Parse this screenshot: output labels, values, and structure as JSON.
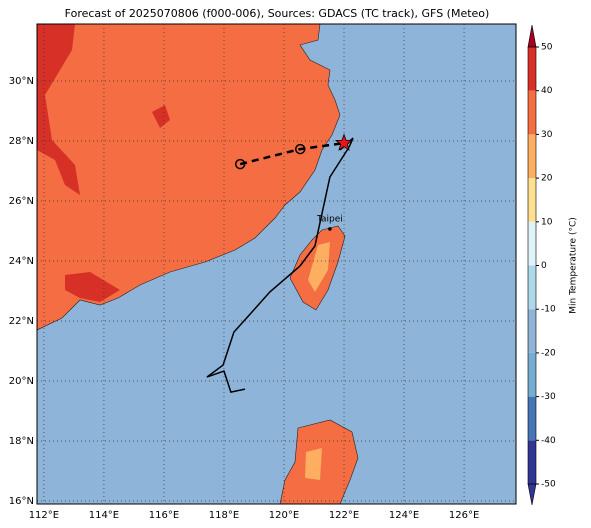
{
  "title": "Forecast of 2025070806 (f000-006), Sources: GDACS (TC track), GFS (Meteo)",
  "map": {
    "xlim": [
      111.77,
      127.73
    ],
    "ylim": [
      15.9,
      31.9
    ],
    "xticks": [
      {
        "value": 112,
        "label": "112°E"
      },
      {
        "value": 114,
        "label": "114°E"
      },
      {
        "value": 116,
        "label": "116°E"
      },
      {
        "value": 118,
        "label": "118°E"
      },
      {
        "value": 120,
        "label": "120°E"
      },
      {
        "value": 122,
        "label": "122°E"
      },
      {
        "value": 124,
        "label": "124°E"
      },
      {
        "value": 126,
        "label": "126°E"
      }
    ],
    "yticks": [
      {
        "value": 16,
        "label": "16°N"
      },
      {
        "value": 18,
        "label": "18°N"
      },
      {
        "value": 20,
        "label": "20°N"
      },
      {
        "value": 22,
        "label": "22°N"
      },
      {
        "value": 24,
        "label": "24°N"
      },
      {
        "value": 26,
        "label": "26°N"
      },
      {
        "value": 28,
        "label": "28°N"
      },
      {
        "value": 30,
        "label": "30°N"
      }
    ],
    "grid": true,
    "city": {
      "name": "Taipei",
      "lon": 121.53,
      "lat": 25.07
    },
    "gfs_track": {
      "color": "#000000",
      "lon": [
        118.7,
        118.23,
        118.0,
        117.43,
        117.97,
        118.33,
        118.87,
        119.53,
        120.53,
        121.03,
        121.53,
        122.17,
        122.3,
        121.87
      ],
      "lat": [
        19.73,
        19.63,
        20.33,
        20.13,
        20.53,
        21.63,
        22.23,
        22.97,
        23.83,
        24.5,
        26.8,
        27.8,
        28.1,
        27.7
      ]
    },
    "gdacs_track": {
      "color": "#000000",
      "lon": [
        118.54,
        120.54,
        122.0
      ],
      "lat": [
        27.23,
        27.73,
        27.93
      ]
    },
    "current_color": "#e8141b"
  },
  "colorbar": {
    "label": "Min Temperature (°C)",
    "lim": [
      -50,
      50
    ],
    "ticks": [
      -50,
      -40,
      -30,
      -20,
      -10,
      0,
      10,
      20,
      30,
      40,
      50
    ],
    "levels": [
      -50,
      -40,
      -30,
      -20,
      -10,
      0,
      10,
      20,
      30,
      40,
      50
    ],
    "colors": [
      "#313695",
      "#4575b4",
      "#74add1",
      "#8fb4d9",
      "#abd9e9",
      "#e0f3f8",
      "#fee090",
      "#fdae61",
      "#f46d43",
      "#d73027",
      "#a50026"
    ]
  }
}
